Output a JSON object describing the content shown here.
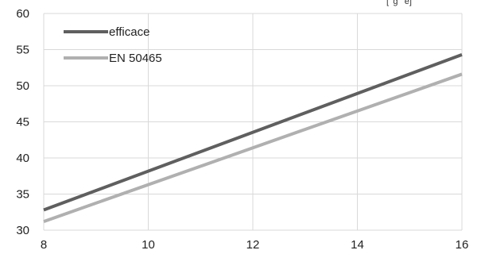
{
  "chart_data": {
    "type": "line",
    "title": "",
    "xlabel": "",
    "ylabel": "",
    "header_fragment": "[  g   e]",
    "xlim": [
      8,
      16
    ],
    "ylim": [
      30,
      60
    ],
    "x_ticks": [
      8,
      10,
      12,
      14,
      16
    ],
    "y_ticks": [
      30,
      35,
      40,
      45,
      50,
      55,
      60
    ],
    "grid": true,
    "legend_position": "top-left",
    "series": [
      {
        "name": "efficace",
        "color": "#5f5f5f",
        "x": [
          8,
          16
        ],
        "y": [
          32.8,
          54.3
        ]
      },
      {
        "name": "EN 50465",
        "color": "#b0b0b0",
        "x": [
          8,
          16
        ],
        "y": [
          31.2,
          51.6
        ]
      }
    ],
    "colors": {
      "grid": "#d9d9d9",
      "axis": "#d9d9d9",
      "text": "#222222"
    }
  }
}
